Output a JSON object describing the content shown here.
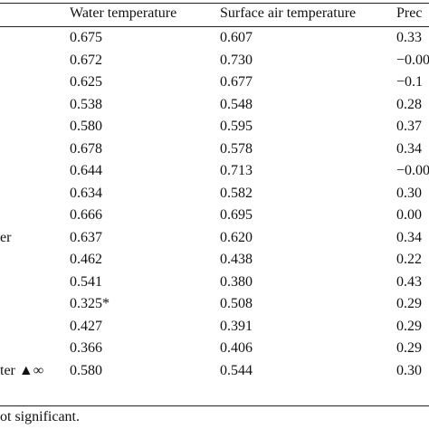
{
  "table": {
    "headers": [
      "Water temperature",
      "Surface air temperature",
      "Prec"
    ],
    "rows": [
      {
        "label": "",
        "water": "0.675",
        "air": "0.607",
        "prec": "0.33"
      },
      {
        "label": "",
        "water": "0.672",
        "air": "0.730",
        "prec": "−0.00"
      },
      {
        "label": "",
        "water": "0.625",
        "air": "0.677",
        "prec": "−0.1"
      },
      {
        "label": "",
        "water": "0.538",
        "air": "0.548",
        "prec": "0.28"
      },
      {
        "label": "",
        "water": "0.580",
        "air": "0.595",
        "prec": "0.37"
      },
      {
        "label": "",
        "water": "0.678",
        "air": "0.578",
        "prec": "0.34"
      },
      {
        "label": "",
        "water": "0.644",
        "air": "0.713",
        "prec": "−0.00"
      },
      {
        "label": "",
        "water": "0.634",
        "air": "0.582",
        "prec": "0.30"
      },
      {
        "label": "",
        "water": "0.666",
        "air": "0.695",
        "prec": "0.00"
      },
      {
        "label": "er",
        "water": "0.637",
        "air": "0.620",
        "prec": "0.34"
      },
      {
        "label": "",
        "water": "0.462",
        "air": "0.438",
        "prec": "0.22"
      },
      {
        "label": "",
        "water": "0.541",
        "air": "0.380",
        "prec": "0.43"
      },
      {
        "label": "",
        "water": "0.325*",
        "air": "0.508",
        "prec": "0.29"
      },
      {
        "label": "",
        "water": "0.427",
        "air": "0.391",
        "prec": "0.29"
      },
      {
        "label": "",
        "water": "0.366",
        "air": "0.406",
        "prec": "0.29"
      },
      {
        "label": "ter ▲∞",
        "water": "0.580",
        "air": "0.544",
        "prec": "0.30"
      }
    ]
  },
  "footnote": "ot significant."
}
